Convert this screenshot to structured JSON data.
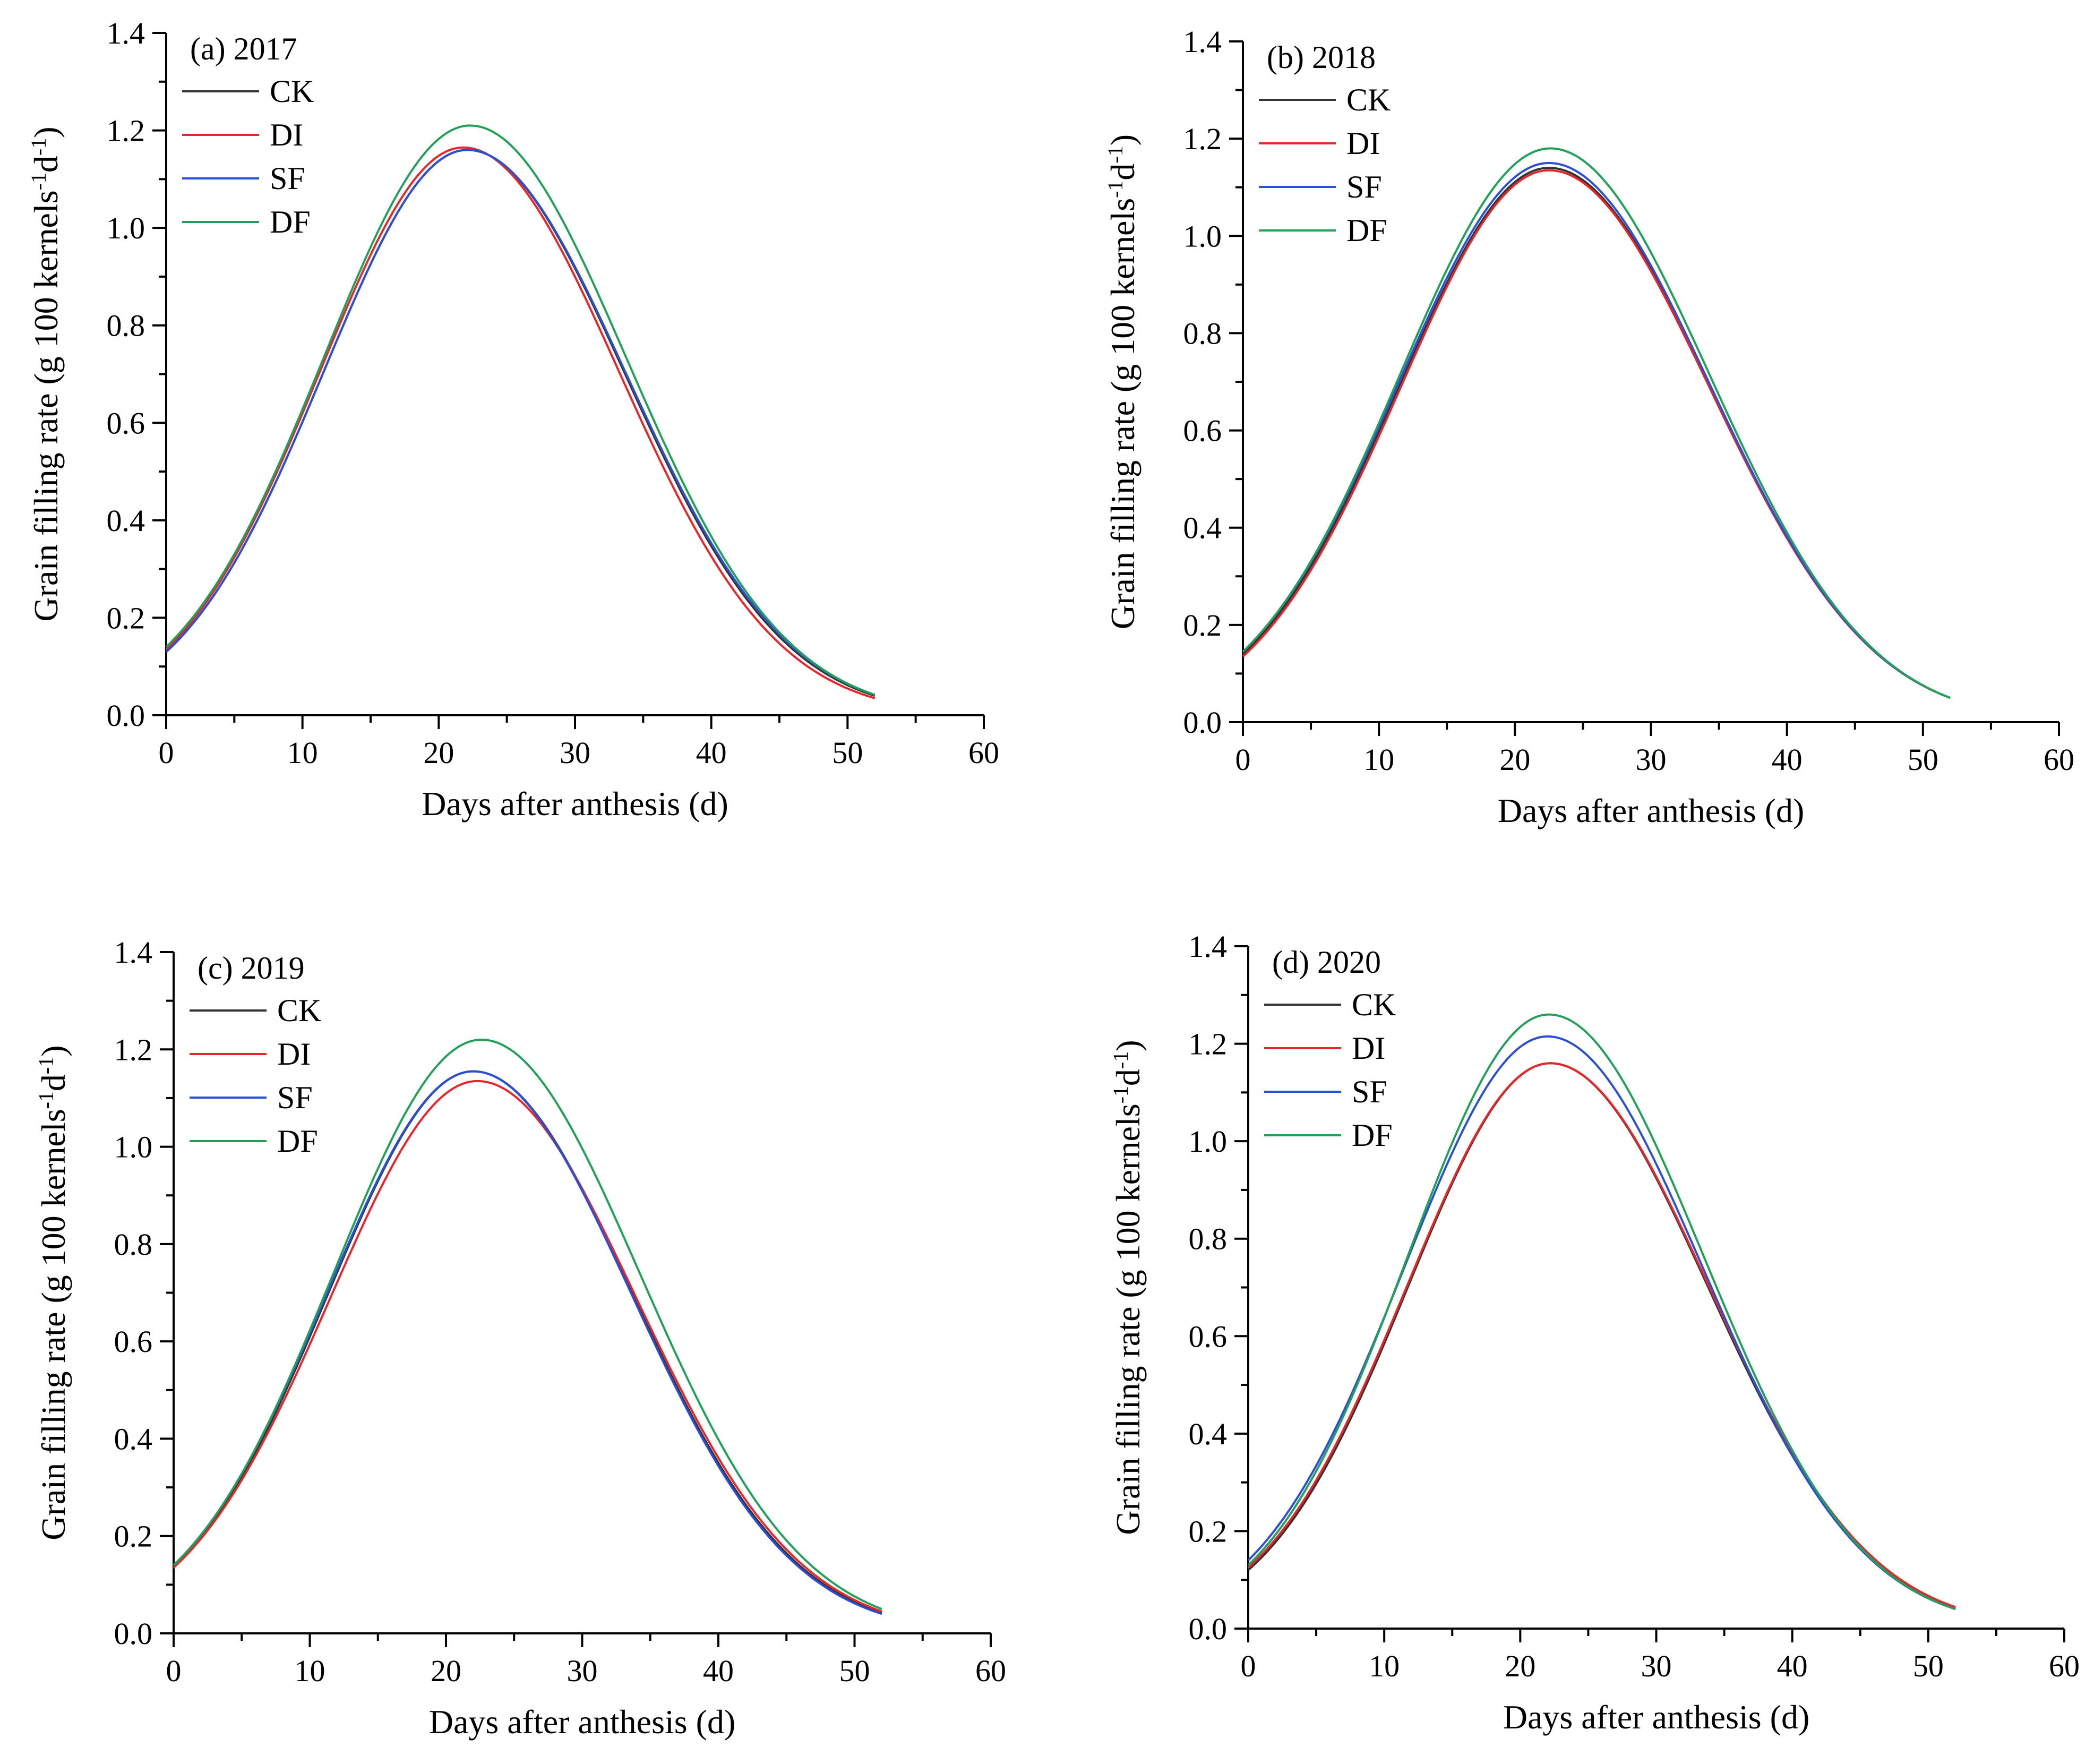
{
  "colors": {
    "CK": "#333333",
    "DI": "#e8262a",
    "SF": "#2a4fd6",
    "DF": "#22a05a",
    "axis": "#000000"
  },
  "chart_data": [
    {
      "type": "line",
      "title": "(a) 2017",
      "xlabel": "Days after anthesis (d)",
      "ylabel": "Grain filling rate (g 100 kernels-1d-1)",
      "xlim": [
        0,
        60
      ],
      "ylim": [
        0,
        1.4
      ],
      "xticks": [
        "0",
        "10",
        "20",
        "30",
        "40",
        "50",
        "60"
      ],
      "yticks": [
        "0.0",
        "0.2",
        "0.4",
        "0.6",
        "0.8",
        "1.0",
        "1.2",
        "1.4"
      ],
      "legend": "top-left",
      "x": [
        0,
        4,
        8,
        12,
        16,
        20,
        22,
        24,
        28,
        32,
        36,
        40,
        44,
        48,
        52
      ],
      "series": [
        {
          "name": "CK",
          "peak_day": 22.1,
          "peak": 1.16,
          "start": 0.13,
          "end": 0.04
        },
        {
          "name": "DI",
          "peak_day": 21.8,
          "peak": 1.165,
          "start": 0.135,
          "end": 0.035
        },
        {
          "name": "SF",
          "peak_day": 22.1,
          "peak": 1.16,
          "start": 0.13,
          "end": 0.042
        },
        {
          "name": "DF",
          "peak_day": 22.3,
          "peak": 1.21,
          "start": 0.14,
          "end": 0.042
        }
      ]
    },
    {
      "type": "line",
      "title": "(b) 2018",
      "xlabel": "Days after anthesis (d)",
      "ylabel": "Grain filling rate (g 100 kernels-1d-1)",
      "xlim": [
        0,
        60
      ],
      "ylim": [
        0,
        1.4
      ],
      "xticks": [
        "0",
        "10",
        "20",
        "30",
        "40",
        "50",
        "60"
      ],
      "yticks": [
        "0.0",
        "0.2",
        "0.4",
        "0.6",
        "0.8",
        "1.0",
        "1.2",
        "1.4"
      ],
      "legend": "top-left",
      "x": [
        0,
        4,
        8,
        12,
        16,
        20,
        22,
        24,
        28,
        32,
        36,
        40,
        44,
        48,
        52
      ],
      "series": [
        {
          "name": "CK",
          "peak_day": 22.5,
          "peak": 1.14,
          "start": 0.14,
          "end": 0.05
        },
        {
          "name": "DI",
          "peak_day": 22.5,
          "peak": 1.135,
          "start": 0.135,
          "end": 0.05
        },
        {
          "name": "SF",
          "peak_day": 22.5,
          "peak": 1.15,
          "start": 0.145,
          "end": 0.05
        },
        {
          "name": "DF",
          "peak_day": 22.6,
          "peak": 1.18,
          "start": 0.145,
          "end": 0.05
        }
      ]
    },
    {
      "type": "line",
      "title": "(c) 2019",
      "xlabel": "Days after anthesis (d)",
      "ylabel": "Grain filling rate (g 100 kernels-1d-1)",
      "xlim": [
        0,
        60
      ],
      "ylim": [
        0,
        1.4
      ],
      "xticks": [
        "0",
        "10",
        "20",
        "30",
        "40",
        "50",
        "60"
      ],
      "yticks": [
        "0.0",
        "0.2",
        "0.4",
        "0.6",
        "0.8",
        "1.0",
        "1.2",
        "1.4"
      ],
      "legend": "top-left",
      "x": [
        0,
        4,
        8,
        12,
        16,
        20,
        22,
        24,
        28,
        32,
        36,
        40,
        44,
        48,
        52
      ],
      "series": [
        {
          "name": "CK",
          "peak_day": 22.0,
          "peak": 1.155,
          "start": 0.135,
          "end": 0.042
        },
        {
          "name": "DI",
          "peak_day": 22.3,
          "peak": 1.135,
          "start": 0.135,
          "end": 0.045
        },
        {
          "name": "SF",
          "peak_day": 22.0,
          "peak": 1.155,
          "start": 0.14,
          "end": 0.04
        },
        {
          "name": "DF",
          "peak_day": 22.6,
          "peak": 1.22,
          "start": 0.14,
          "end": 0.05
        }
      ]
    },
    {
      "type": "line",
      "title": "(d) 2020",
      "xlabel": "Days after anthesis (d)",
      "ylabel": "Grain filling rate (g 100 kernels-1d-1)",
      "xlim": [
        0,
        60
      ],
      "ylim": [
        0,
        1.4
      ],
      "xticks": [
        "0",
        "10",
        "20",
        "30",
        "40",
        "50",
        "60"
      ],
      "yticks": [
        "0.0",
        "0.2",
        "0.4",
        "0.6",
        "0.8",
        "1.0",
        "1.2",
        "1.4"
      ],
      "legend": "top-left",
      "x": [
        0,
        4,
        8,
        12,
        16,
        20,
        22,
        24,
        28,
        32,
        36,
        40,
        44,
        48,
        52
      ],
      "series": [
        {
          "name": "CK",
          "peak_day": 22.2,
          "peak": 1.16,
          "start": 0.12,
          "end": 0.042
        },
        {
          "name": "DI",
          "peak_day": 22.2,
          "peak": 1.16,
          "start": 0.125,
          "end": 0.044
        },
        {
          "name": "SF",
          "peak_day": 22.0,
          "peak": 1.215,
          "start": 0.14,
          "end": 0.04
        },
        {
          "name": "DF",
          "peak_day": 22.1,
          "peak": 1.26,
          "start": 0.13,
          "end": 0.04
        }
      ]
    }
  ]
}
